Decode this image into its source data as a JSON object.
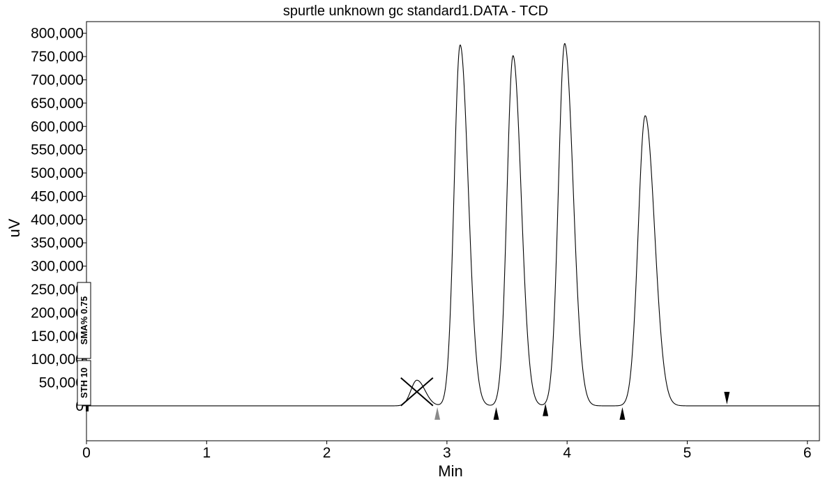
{
  "chart_data": {
    "type": "line",
    "title": "spurtle unknown gc standard1.DATA - TCD",
    "xlabel": "Min",
    "ylabel": "uV",
    "xlim": [
      0,
      6.1
    ],
    "ylim": [
      -75000,
      825000
    ],
    "x_ticks": [
      0,
      1,
      2,
      3,
      4,
      5,
      6
    ],
    "x_tick_labels": [
      "0",
      "1",
      "2",
      "3",
      "4",
      "5",
      "6"
    ],
    "y_ticks": [
      0,
      50000,
      100000,
      150000,
      200000,
      250000,
      300000,
      350000,
      400000,
      450000,
      500000,
      550000,
      600000,
      650000,
      700000,
      750000,
      800000
    ],
    "y_tick_labels": [
      "0",
      "50,000",
      "100,000",
      "150,000",
      "200,000",
      "250,000",
      "300,000",
      "350,000",
      "400,000",
      "450,000",
      "500,000",
      "550,000",
      "600,000",
      "650,000",
      "700,000",
      "750,000",
      "800,000"
    ],
    "grid": false,
    "legend": "none",
    "baseline": 0,
    "peaks": [
      {
        "rt": 2.75,
        "height": 55000,
        "sigma": 0.05
      },
      {
        "rt": 3.11,
        "height": 775000,
        "sigma": 0.05
      },
      {
        "rt": 3.55,
        "height": 752000,
        "sigma": 0.05
      },
      {
        "rt": 3.98,
        "height": 778000,
        "sigma": 0.052
      },
      {
        "rt": 4.65,
        "height": 623000,
        "sigma": 0.058
      }
    ],
    "excluded_peak_rt": 2.75,
    "integration_markers": [
      {
        "x": 2.92,
        "y": 0,
        "direction": "up",
        "color": "#8a8a8a"
      },
      {
        "x": 3.41,
        "y": 0,
        "direction": "up",
        "color": "#000000"
      },
      {
        "x": 3.82,
        "y": 8000,
        "direction": "up",
        "color": "#000000"
      },
      {
        "x": 4.46,
        "y": 0,
        "direction": "up",
        "color": "#000000"
      },
      {
        "x": 5.33,
        "y": 0,
        "direction": "down",
        "color": "#000000"
      }
    ],
    "timed_events": [
      "STH 10",
      "SMA% 0.75"
    ],
    "line_color": "#000000"
  }
}
